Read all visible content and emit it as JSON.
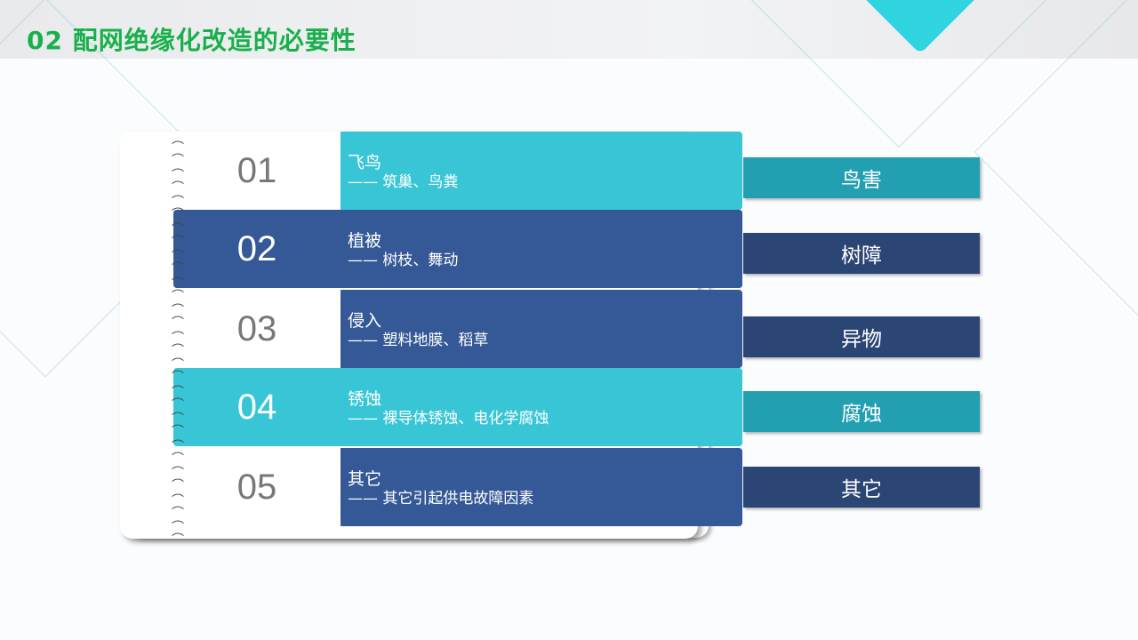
{
  "title": "02 配网绝缘化改造的必要性",
  "colors": {
    "teal": "#38c6d6",
    "blue": "#355996",
    "tag_teal": "#229fb1",
    "tag_navy": "#2b4574",
    "title_green": "#19b04b"
  },
  "items": [
    {
      "num": "01",
      "heading": "飞鸟",
      "detail": "—— 筑巢、鸟粪",
      "tag": "鸟害",
      "style": "teal",
      "left": "white"
    },
    {
      "num": "02",
      "heading": "植被",
      "detail": "—— 树枝、舞动",
      "tag": "树障",
      "style": "blue",
      "left": "filled"
    },
    {
      "num": "03",
      "heading": "侵入",
      "detail": "—— 塑料地膜、稻草",
      "tag": "异物",
      "style": "blue",
      "left": "white"
    },
    {
      "num": "04",
      "heading": "锈蚀",
      "detail": "—— 裸导体锈蚀、电化学腐蚀",
      "tag": "腐蚀",
      "style": "teal",
      "left": "filled"
    },
    {
      "num": "05",
      "heading": "其它",
      "detail": "—— 其它引起供电故障因素",
      "tag": "其它",
      "style": "blue",
      "left": "white"
    }
  ]
}
